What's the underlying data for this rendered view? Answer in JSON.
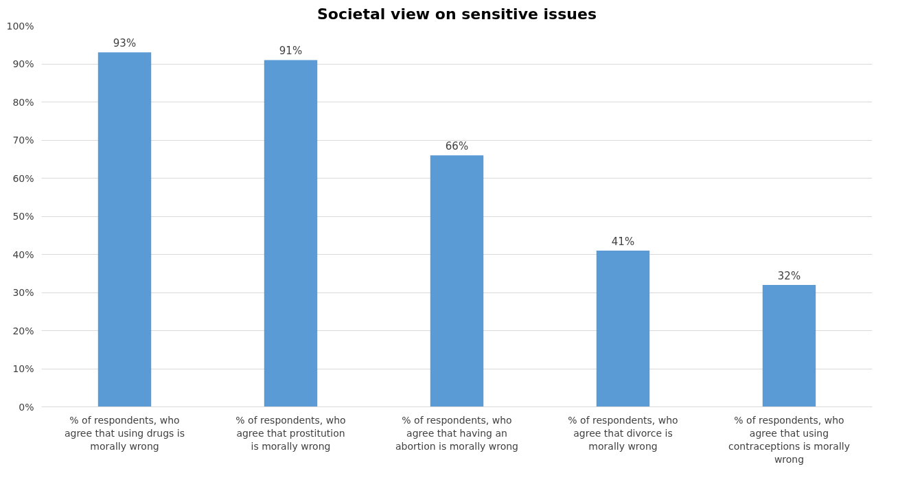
{
  "chart_data": {
    "type": "bar",
    "title": "Societal view on sensitive issues",
    "categories": [
      "% of respondents, who agree that using drugs is morally wrong",
      "% of respondents, who agree that prostitution is morally wrong",
      "% of respondents, who agree that having an abortion is morally wrong",
      "% of respondents, who agree that divorce is morally wrong",
      "% of respondents, who agree that using contraceptions is morally wrong"
    ],
    "values": [
      93,
      91,
      66,
      41,
      32
    ],
    "color": "#5b9bd5",
    "value_labels": [
      "93%",
      "91%",
      "66%",
      "41%",
      "32%"
    ],
    "ylim": [
      0,
      100
    ],
    "yticks": [
      {
        "value": 0,
        "label": "0%"
      },
      {
        "value": 10,
        "label": "10%"
      },
      {
        "value": 20,
        "label": "20%"
      },
      {
        "value": 30,
        "label": "30%"
      },
      {
        "value": 40,
        "label": "40%"
      },
      {
        "value": 50,
        "label": "50%"
      },
      {
        "value": 60,
        "label": "60%"
      },
      {
        "value": 70,
        "label": "70%"
      },
      {
        "value": 80,
        "label": "80%"
      },
      {
        "value": 90,
        "label": "90%"
      },
      {
        "value": 100,
        "label": "100%"
      }
    ],
    "grid": "y"
  }
}
